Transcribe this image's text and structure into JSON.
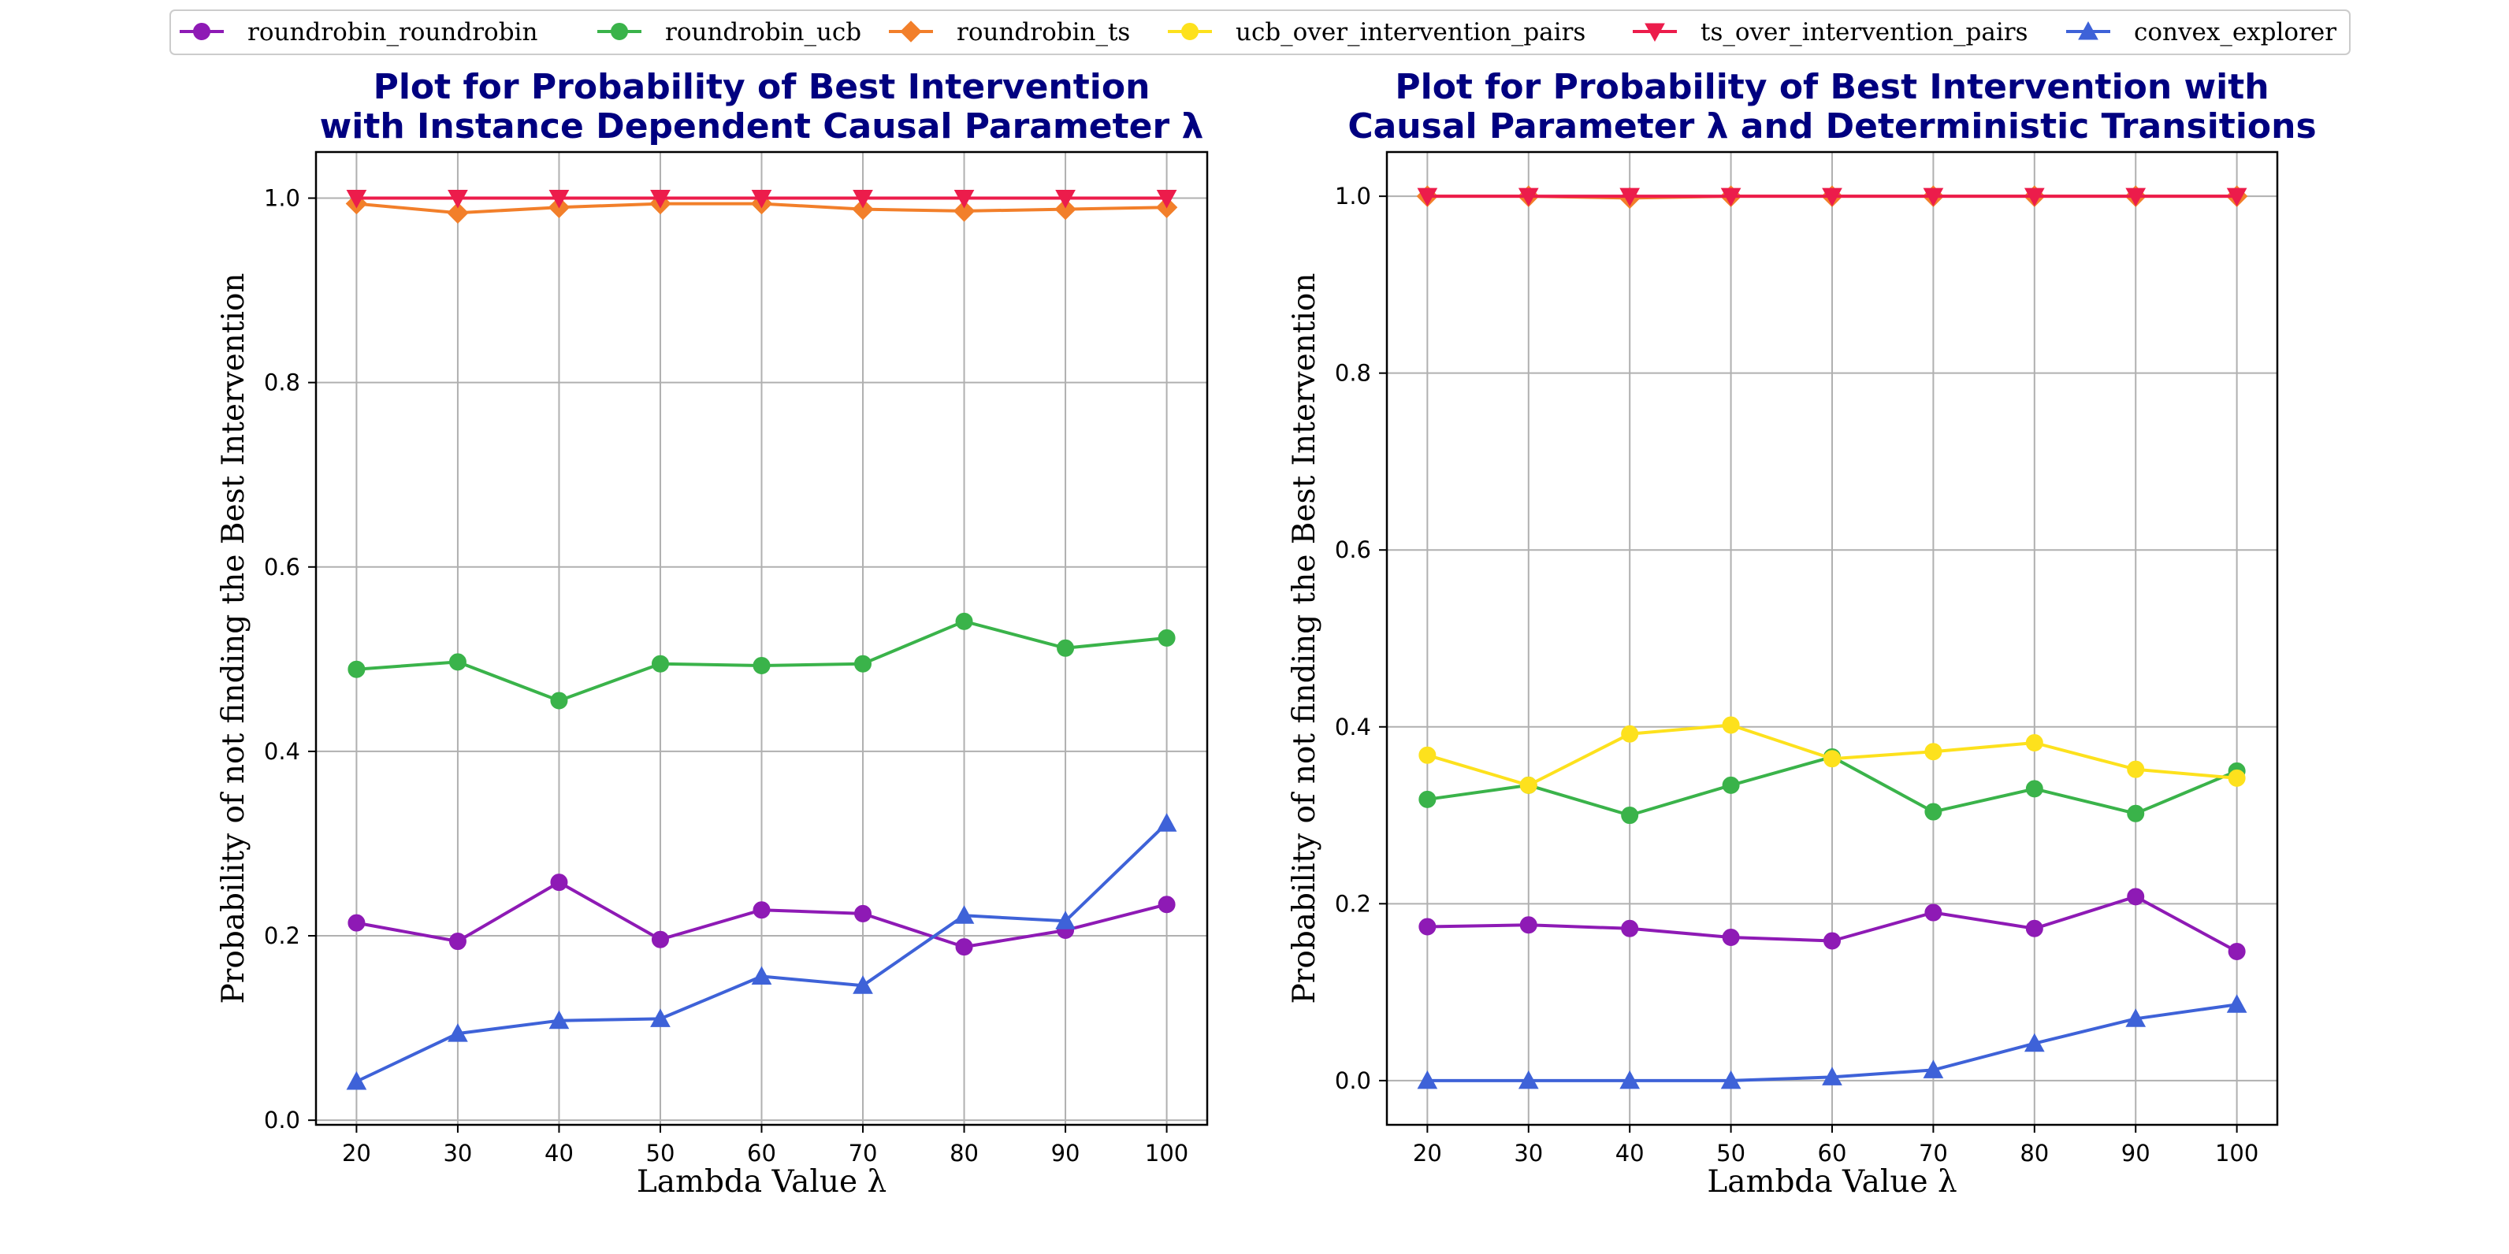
{
  "legend": [
    {
      "name": "roundrobin_roundrobin",
      "color": "#8e1ab5",
      "marker": "circle"
    },
    {
      "name": "roundrobin_ucb",
      "color": "#3ab34a",
      "marker": "circle"
    },
    {
      "name": "roundrobin_ts",
      "color": "#f27f2a",
      "marker": "diamond"
    },
    {
      "name": "ucb_over_intervention_pairs",
      "color": "#fde11d",
      "marker": "circle"
    },
    {
      "name": "ts_over_intervention_pairs",
      "color": "#ec1c4b",
      "marker": "triangle-down"
    },
    {
      "name": "convex_explorer",
      "color": "#3e62d8",
      "marker": "triangle-up"
    }
  ],
  "chart_data": [
    {
      "type": "line",
      "title_lines": [
        "Plot for Probability of Best Intervention",
        "with Instance Dependent Causal Parameter λ"
      ],
      "xlabel": "Lambda Value λ",
      "ylabel": "Probability of not finding the Best Intervention",
      "x": [
        20,
        30,
        40,
        50,
        60,
        70,
        80,
        90,
        100
      ],
      "xticks": [
        "20",
        "30",
        "40",
        "50",
        "60",
        "70",
        "80",
        "90",
        "100"
      ],
      "yticks": [
        0.0,
        0.2,
        0.4,
        0.6,
        0.8,
        1.0
      ],
      "yticklabels": [
        "0.0",
        "0.2",
        "0.4",
        "0.6",
        "0.8",
        "1.0"
      ],
      "xlim": [
        16,
        104
      ],
      "ylim": [
        -0.005,
        1.05
      ],
      "grid": true,
      "series": [
        {
          "name": "roundrobin_roundrobin",
          "color": "#8e1ab5",
          "marker": "circle",
          "values": [
            0.214,
            0.194,
            0.258,
            0.196,
            0.228,
            0.224,
            0.188,
            0.206,
            0.234
          ]
        },
        {
          "name": "roundrobin_ucb",
          "color": "#3ab34a",
          "marker": "circle",
          "values": [
            0.489,
            0.497,
            0.455,
            0.495,
            0.493,
            0.495,
            0.541,
            0.512,
            0.523
          ]
        },
        {
          "name": "roundrobin_ts",
          "color": "#f27f2a",
          "marker": "diamond",
          "values": [
            0.994,
            0.984,
            0.99,
            0.994,
            0.994,
            0.988,
            0.986,
            0.988,
            0.99
          ]
        },
        {
          "name": "ts_over_intervention_pairs",
          "color": "#ec1c4b",
          "marker": "triangle-down",
          "values": [
            1.0,
            1.0,
            1.0,
            1.0,
            1.0,
            1.0,
            1.0,
            1.0,
            1.0
          ]
        },
        {
          "name": "convex_explorer",
          "color": "#3e62d8",
          "marker": "triangle-up",
          "values": [
            0.042,
            0.094,
            0.108,
            0.11,
            0.156,
            0.146,
            0.222,
            0.216,
            0.322
          ]
        }
      ]
    },
    {
      "type": "line",
      "title_lines": [
        "Plot for Probability of Best Intervention with",
        "Causal Parameter λ and Deterministic Transitions"
      ],
      "xlabel": "Lambda Value λ",
      "ylabel": "Probability of not finding the Best Intervention",
      "x": [
        20,
        30,
        40,
        50,
        60,
        70,
        80,
        90,
        100
      ],
      "xticks": [
        "20",
        "30",
        "40",
        "50",
        "60",
        "70",
        "80",
        "90",
        "100"
      ],
      "yticks": [
        0.0,
        0.2,
        0.4,
        0.6,
        0.8,
        1.0
      ],
      "yticklabels": [
        "0.0",
        "0.2",
        "0.4",
        "0.6",
        "0.8",
        "1.0"
      ],
      "xlim": [
        16,
        104
      ],
      "ylim": [
        -0.05,
        1.05
      ],
      "grid": true,
      "series": [
        {
          "name": "roundrobin_roundrobin",
          "color": "#8e1ab5",
          "marker": "circle",
          "values": [
            0.174,
            0.176,
            0.172,
            0.162,
            0.158,
            0.19,
            0.172,
            0.208,
            0.146
          ]
        },
        {
          "name": "roundrobin_ucb",
          "color": "#3ab34a",
          "marker": "circle",
          "values": [
            0.318,
            0.334,
            0.3,
            0.334,
            0.366,
            0.304,
            0.33,
            0.302,
            0.35
          ]
        },
        {
          "name": "roundrobin_ts",
          "color": "#f27f2a",
          "marker": "diamond",
          "values": [
            1.0,
            1.0,
            0.998,
            1.0,
            1.0,
            1.0,
            1.0,
            1.0,
            1.0
          ]
        },
        {
          "name": "ucb_over_intervention_pairs",
          "color": "#fde11d",
          "marker": "circle",
          "values": [
            0.368,
            0.334,
            0.392,
            0.402,
            0.364,
            0.372,
            0.382,
            0.352,
            0.342
          ]
        },
        {
          "name": "ts_over_intervention_pairs",
          "color": "#ec1c4b",
          "marker": "triangle-down",
          "values": [
            1.0,
            1.0,
            1.0,
            1.0,
            1.0,
            1.0,
            1.0,
            1.0,
            1.0
          ]
        },
        {
          "name": "convex_explorer",
          "color": "#3e62d8",
          "marker": "triangle-up",
          "values": [
            0.0,
            0.0,
            0.0,
            0.0,
            0.004,
            0.012,
            0.042,
            0.07,
            0.086
          ]
        }
      ]
    }
  ]
}
